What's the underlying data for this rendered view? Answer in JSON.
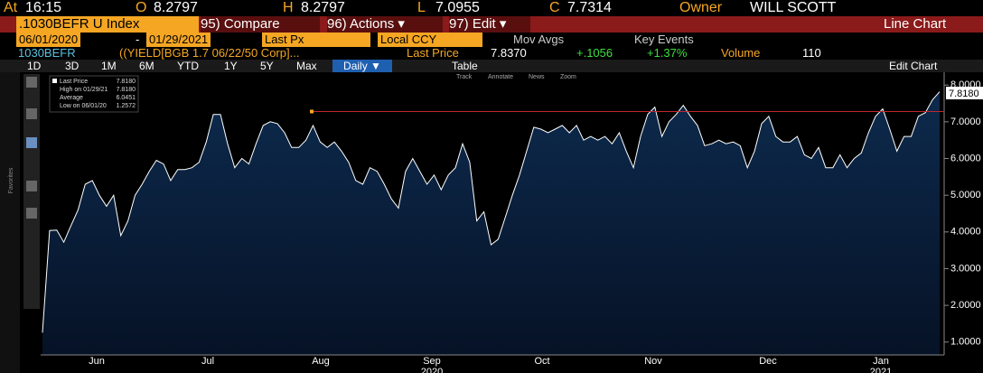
{
  "header": {
    "time_label": "At",
    "time": "16:15",
    "open_label": "O",
    "open": "8.2797",
    "high_label": "H",
    "high": "8.2797",
    "low_label": "L",
    "low": "7.0955",
    "close_label": "C",
    "close": "7.7314",
    "owner_label": "Owner",
    "owner": "WILL SCOTT"
  },
  "toolbar": {
    "ticker": ".1030BEFR U Index",
    "compare": "95) Compare",
    "actions": "96) Actions ▾",
    "edit": "97) Edit ▾",
    "view": "Line Chart"
  },
  "settings": {
    "start": "06/01/2020",
    "dash": "-",
    "end": "01/29/2021",
    "field": "Last Px",
    "currency": "Local CCY",
    "mov_avgs": "Mov Avgs",
    "key_events": "Key Events"
  },
  "quote": {
    "ticker": "1030BEFR",
    "security": "((YIELD[BGB 1.7 06/22/50 Corp]...",
    "last_label": "Last Price",
    "last": "7.8370",
    "change": "+.1056",
    "change_pct": "+1.37%",
    "volume_label": "Volume",
    "volume": "110"
  },
  "periods": [
    "1D",
    "3D",
    "1M",
    "6M",
    "YTD",
    "1Y",
    "5Y",
    "Max"
  ],
  "frequency": "Daily ▼",
  "table": "Table",
  "edit_chart": "Edit Chart",
  "chart_tools": [
    "Track",
    "Annotate",
    "News",
    "Zoom"
  ],
  "sidebar_label": "Favorites",
  "chart_data": {
    "type": "line",
    "last_value": "7.8180",
    "legend": [
      {
        "label": "High on 01/29/21",
        "value": "7.8180"
      },
      {
        "label": "Average",
        "value": "6.0451"
      },
      {
        "label": "Low on 06/01/20",
        "value": "1.2572"
      }
    ],
    "series": [
      {
        "name": "Last Price",
        "color": "#ffffff",
        "values": [
          1.2572,
          4.04,
          4.05,
          3.72,
          4.17,
          4.6,
          5.3,
          5.4,
          5.0,
          4.7,
          5.0,
          3.9,
          4.3,
          5.0,
          5.3,
          5.65,
          5.95,
          5.85,
          5.4,
          5.7,
          5.7,
          5.75,
          5.9,
          6.45,
          7.2,
          7.2,
          6.4,
          5.75,
          6.0,
          5.85,
          6.4,
          6.9,
          7.0,
          6.95,
          6.7,
          6.3,
          6.3,
          6.5,
          6.9,
          6.45,
          6.3,
          6.45,
          6.2,
          5.9,
          5.4,
          5.3,
          5.75,
          5.65,
          5.3,
          4.9,
          4.65,
          5.65,
          6.0,
          5.65,
          5.3,
          5.55,
          5.15,
          5.55,
          5.75,
          6.4,
          5.9,
          4.3,
          4.55,
          3.65,
          3.8,
          4.4,
          5.0,
          5.55,
          6.2,
          6.85,
          6.8,
          6.7,
          6.8,
          6.9,
          6.7,
          6.9,
          6.5,
          6.6,
          6.5,
          6.6,
          6.4,
          6.7,
          6.2,
          5.75,
          6.6,
          7.2,
          7.4,
          6.6,
          7.0,
          7.2,
          7.45,
          7.15,
          6.9,
          6.35,
          6.4,
          6.5,
          6.4,
          6.45,
          6.35,
          5.75,
          6.2,
          6.95,
          7.15,
          6.6,
          6.45,
          6.45,
          6.6,
          6.1,
          6.0,
          6.3,
          5.75,
          5.75,
          6.1,
          5.75,
          6.0,
          6.15,
          6.7,
          7.15,
          7.35,
          6.8,
          6.2,
          6.6,
          6.6,
          7.15,
          7.25,
          7.6,
          7.818
        ]
      }
    ],
    "reference_line": 7.28,
    "reference_color": "#c0282d",
    "fill_color": "#0d2a4d",
    "x_labels": [
      "Jun",
      "Jul",
      "Aug",
      "Sep",
      "Oct",
      "Nov",
      "Dec",
      "Jan"
    ],
    "year_labels": [
      "2020",
      "2021"
    ],
    "ylim": [
      0.65,
      8.3
    ],
    "yticks": [
      {
        "value": 1,
        "label": "1.0000"
      },
      {
        "value": 2,
        "label": "2.0000"
      },
      {
        "value": 3,
        "label": "3.0000"
      },
      {
        "value": 4,
        "label": "4.0000"
      },
      {
        "value": 5,
        "label": "5.0000"
      },
      {
        "value": 6,
        "label": "6.0000"
      },
      {
        "value": 7,
        "label": "7.0000"
      },
      {
        "value": 8,
        "label": "8.0000"
      }
    ]
  }
}
